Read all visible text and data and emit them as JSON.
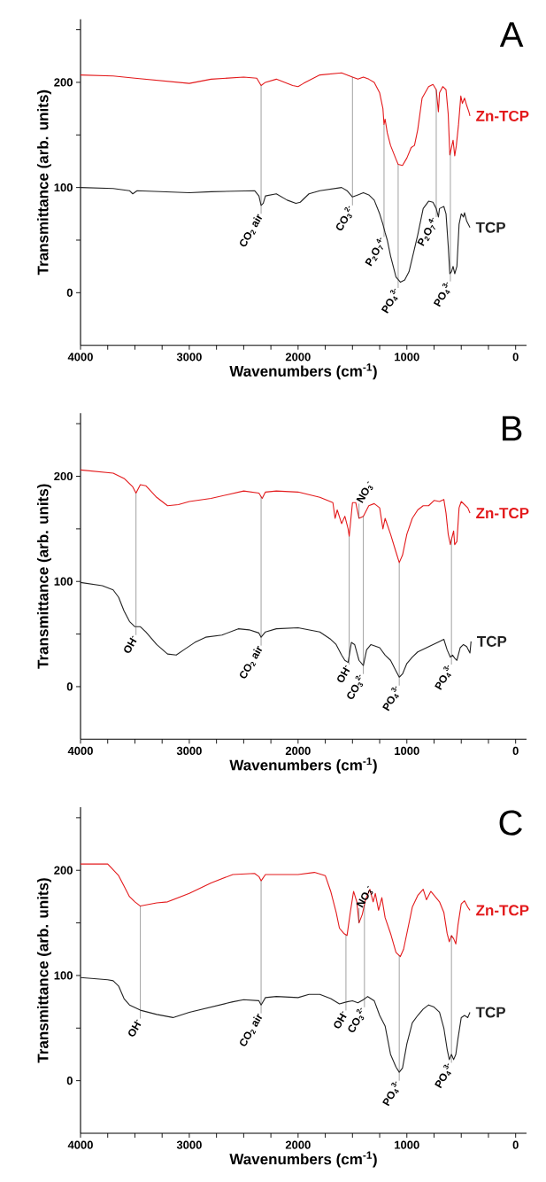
{
  "chart_data": [
    {
      "type": "line",
      "title": "A",
      "xlabel": "Wavenumbers (cm$^{-1}$)",
      "ylabel": "Transmittance (arb. units)",
      "xlim": [
        4000,
        -100
      ],
      "ylim": [
        -50,
        260
      ],
      "xticks": [
        0,
        {
          "value": 250,
          "label": null
        },
        {
          "value": 500,
          "label": null
        },
        {
          "value": 750,
          "label": null
        },
        1000,
        {
          "value": 1250,
          "label": null
        },
        {
          "value": 1500,
          "label": null
        },
        {
          "value": 1750,
          "label": null
        },
        2000,
        {
          "value": 2250,
          "label": null
        },
        {
          "value": 2500,
          "label": null
        },
        {
          "value": 2750,
          "label": null
        },
        3000,
        {
          "value": 3250,
          "label": null
        },
        {
          "value": 3500,
          "label": null
        },
        {
          "value": 3750,
          "label": null
        },
        4000
      ],
      "yticks": [
        0,
        {
          "value": 50,
          "label": null
        },
        100,
        {
          "value": 150,
          "label": null
        },
        200,
        {
          "value": 250,
          "label": null
        }
      ],
      "series": [
        {
          "name": "Zn-TCP",
          "color": "#e31a1c",
          "x": [
            4000,
            3700,
            3500,
            3000,
            2800,
            2500,
            2380,
            2340,
            2300,
            2200,
            2050,
            2000,
            1950,
            1800,
            1600,
            1500,
            1450,
            1400,
            1350,
            1300,
            1250,
            1220,
            1210,
            1200,
            1180,
            1150,
            1100,
            1080,
            1040,
            1000,
            960,
            930,
            900,
            860,
            800,
            760,
            730,
            710,
            700,
            670,
            640,
            620,
            605,
            590,
            575,
            560,
            545,
            525,
            504,
            490,
            470,
            450,
            430,
            420
          ],
          "values": [
            207,
            206,
            204,
            199,
            203,
            205,
            204,
            197,
            200,
            203,
            197,
            196,
            199,
            207,
            209,
            205,
            203,
            205,
            203,
            200,
            190,
            175,
            160,
            165,
            152,
            140,
            127,
            122,
            121,
            128,
            138,
            140,
            155,
            185,
            196,
            198,
            193,
            172,
            190,
            196,
            193,
            170,
            131,
            138,
            145,
            130,
            140,
            160,
            187,
            180,
            185,
            178,
            172,
            168
          ]
        },
        {
          "name": "TCP",
          "color": "#222222",
          "x": [
            4000,
            3700,
            3550,
            3520,
            3480,
            3000,
            2800,
            2400,
            2360,
            2340,
            2320,
            2300,
            2200,
            2100,
            2020,
            1980,
            1900,
            1800,
            1600,
            1550,
            1500,
            1450,
            1400,
            1350,
            1300,
            1250,
            1220,
            1200,
            1180,
            1150,
            1100,
            1060,
            1020,
            980,
            950,
            900,
            850,
            800,
            760,
            730,
            710,
            700,
            660,
            640,
            620,
            605,
            590,
            575,
            560,
            540,
            520,
            500,
            480,
            470,
            450,
            420
          ],
          "values": [
            100,
            99,
            97,
            94,
            97,
            95,
            96,
            97,
            92,
            83,
            85,
            92,
            94,
            88,
            85,
            86,
            94,
            97,
            100,
            97,
            91,
            93,
            95,
            93,
            88,
            75,
            65,
            57,
            50,
            35,
            15,
            10,
            12,
            20,
            33,
            55,
            80,
            87,
            86,
            80,
            72,
            80,
            82,
            75,
            45,
            18,
            20,
            25,
            18,
            25,
            65,
            75,
            72,
            76,
            68,
            62
          ]
        }
      ],
      "annotations": [
        {
          "text": "CO$_{2}$ air",
          "x": 2340,
          "y": 83
        },
        {
          "text": "CO$_{3}$$^{2-}$",
          "x": 1500,
          "y": 91
        },
        {
          "text": "P$_{2}$O$_{7}$$^{4-}$",
          "x": 1210,
          "y": 61
        },
        {
          "text": "PO$_{4}$$^{3-}$",
          "x": 1080,
          "y": 12.5
        },
        {
          "text": "P$_{2}$O$_{7}$$^{4-}$",
          "x": 730,
          "y": 80
        },
        {
          "text": "PO$_{4}$$^{3-}$",
          "x": 600,
          "y": 18.7
        }
      ]
    },
    {
      "type": "line",
      "title": "B",
      "xlabel": "Wavenumbers (cm$^{-1}$)",
      "ylabel": "Transmittance (arb. units)",
      "xlim": [
        4000,
        -100
      ],
      "ylim": [
        -50,
        260
      ],
      "xticks": [
        0,
        {
          "value": 250,
          "label": null
        },
        {
          "value": 500,
          "label": null
        },
        {
          "value": 750,
          "label": null
        },
        1000,
        {
          "value": 1250,
          "label": null
        },
        {
          "value": 1500,
          "label": null
        },
        {
          "value": 1750,
          "label": null
        },
        2000,
        {
          "value": 2250,
          "label": null
        },
        {
          "value": 2500,
          "label": null
        },
        {
          "value": 2750,
          "label": null
        },
        3000,
        {
          "value": 3250,
          "label": null
        },
        {
          "value": 3500,
          "label": null
        },
        {
          "value": 3750,
          "label": null
        },
        4000
      ],
      "yticks": [
        0,
        {
          "value": 50,
          "label": null
        },
        100,
        {
          "value": 150,
          "label": null
        },
        200,
        {
          "value": 250,
          "label": null
        }
      ],
      "series": [
        {
          "name": "Zn-TCP",
          "color": "#e31a1c",
          "x": [
            4000,
            3700,
            3600,
            3520,
            3490,
            3450,
            3400,
            3300,
            3200,
            3100,
            3000,
            2800,
            2500,
            2360,
            2330,
            2300,
            2200,
            2000,
            1800,
            1680,
            1660,
            1640,
            1600,
            1570,
            1540,
            1530,
            1500,
            1470,
            1440,
            1400,
            1350,
            1300,
            1250,
            1220,
            1200,
            1150,
            1100,
            1070,
            1040,
            1000,
            950,
            900,
            850,
            800,
            750,
            700,
            660,
            640,
            620,
            600,
            590,
            570,
            560,
            540,
            520,
            500,
            470,
            440,
            420
          ],
          "values": [
            206,
            203,
            198,
            190,
            184,
            192,
            191,
            180,
            172,
            173,
            176,
            179,
            186,
            184,
            179,
            185,
            186,
            185,
            180,
            175,
            160,
            168,
            155,
            162,
            150,
            143,
            175,
            175,
            160,
            162,
            172,
            174,
            170,
            150,
            160,
            145,
            128,
            118,
            125,
            145,
            160,
            168,
            172,
            172,
            177,
            176,
            178,
            165,
            145,
            135,
            140,
            148,
            135,
            138,
            170,
            176,
            173,
            170,
            165
          ]
        },
        {
          "name": "TCP",
          "color": "#222222",
          "x": [
            4000,
            3800,
            3700,
            3650,
            3600,
            3550,
            3500,
            3450,
            3400,
            3300,
            3200,
            3120,
            3050,
            2950,
            2850,
            2700,
            2550,
            2450,
            2360,
            2340,
            2300,
            2200,
            2000,
            1800,
            1700,
            1650,
            1600,
            1570,
            1540,
            1510,
            1480,
            1440,
            1400,
            1370,
            1330,
            1250,
            1200,
            1150,
            1100,
            1070,
            1040,
            1000,
            950,
            900,
            800,
            700,
            660,
            630,
            600,
            580,
            560,
            540,
            510,
            480,
            450,
            420,
            410
          ],
          "values": [
            99,
            96,
            92,
            85,
            72,
            62,
            57,
            57,
            52,
            40,
            31,
            30,
            35,
            42,
            47,
            49,
            55,
            54,
            51,
            47,
            52,
            55,
            56,
            52,
            45,
            40,
            30,
            25,
            23,
            42,
            40,
            25,
            20,
            35,
            40,
            37,
            30,
            25,
            15,
            9,
            12,
            22,
            28,
            33,
            38,
            43,
            45,
            35,
            28,
            30,
            27,
            25,
            37,
            40,
            38,
            32,
            43
          ]
        }
      ],
      "annotations": [
        {
          "text": "OH$^{-}$",
          "x": 3490,
          "y": 57
        },
        {
          "text": "CO$_{2}$ air",
          "x": 2340,
          "y": 47
        },
        {
          "text": "NO$_{3}$$^{-}$",
          "x": 1440,
          "y": 160
        },
        {
          "text": "OH$^{-}$",
          "x": 1530,
          "y": 29
        },
        {
          "text": "CO$_{3}$$^{2-}$",
          "x": 1400,
          "y": 20
        },
        {
          "text": "PO$_{4}$$^{3-}$",
          "x": 1070,
          "y": 9
        },
        {
          "text": "PO$_{4}$$^{3-}$",
          "x": 590,
          "y": 29
        }
      ]
    },
    {
      "type": "line",
      "title": "C",
      "xlabel": "Wavenumbers (cm$^{-1}$)",
      "ylabel": "Transmittance (arb. units)",
      "xlim": [
        4000,
        -100
      ],
      "ylim": [
        -50,
        260
      ],
      "xticks": [
        0,
        {
          "value": 250,
          "label": null
        },
        {
          "value": 500,
          "label": null
        },
        {
          "value": 750,
          "label": null
        },
        1000,
        {
          "value": 1250,
          "label": null
        },
        {
          "value": 1500,
          "label": null
        },
        {
          "value": 1750,
          "label": null
        },
        2000,
        {
          "value": 2250,
          "label": null
        },
        {
          "value": 2500,
          "label": null
        },
        {
          "value": 2750,
          "label": null
        },
        3000,
        {
          "value": 3250,
          "label": null
        },
        {
          "value": 3500,
          "label": null
        },
        {
          "value": 3750,
          "label": null
        },
        4000
      ],
      "yticks": [
        0,
        {
          "value": 50,
          "label": null
        },
        100,
        {
          "value": 150,
          "label": null
        },
        200,
        {
          "value": 250,
          "label": null
        }
      ],
      "series": [
        {
          "name": "Zn-TCP",
          "color": "#e31a1c",
          "x": [
            4000,
            3750,
            3650,
            3600,
            3550,
            3500,
            3450,
            3300,
            3200,
            3000,
            2800,
            2600,
            2400,
            2360,
            2340,
            2300,
            2000,
            1850,
            1750,
            1700,
            1650,
            1620,
            1580,
            1550,
            1520,
            1490,
            1460,
            1440,
            1410,
            1380,
            1340,
            1310,
            1290,
            1260,
            1230,
            1200,
            1150,
            1100,
            1060,
            1030,
            990,
            950,
            900,
            850,
            820,
            780,
            740,
            700,
            660,
            630,
            610,
            590,
            570,
            550,
            530,
            500,
            470,
            440,
            420
          ],
          "values": [
            206,
            206,
            195,
            185,
            175,
            170,
            166,
            169,
            170,
            178,
            188,
            196,
            197,
            194,
            190,
            196,
            196,
            198,
            195,
            180,
            160,
            145,
            140,
            138,
            160,
            180,
            170,
            150,
            158,
            172,
            182,
            170,
            178,
            162,
            174,
            155,
            140,
            122,
            118,
            125,
            145,
            165,
            176,
            182,
            172,
            180,
            175,
            170,
            160,
            140,
            132,
            138,
            135,
            130,
            148,
            168,
            171,
            165,
            162
          ]
        },
        {
          "name": "TCP",
          "color": "#222222",
          "x": [
            4000,
            3750,
            3700,
            3650,
            3600,
            3550,
            3450,
            3300,
            3150,
            3000,
            2800,
            2600,
            2500,
            2360,
            2340,
            2300,
            2200,
            2000,
            1900,
            1800,
            1700,
            1620,
            1550,
            1500,
            1450,
            1400,
            1360,
            1300,
            1250,
            1200,
            1150,
            1100,
            1070,
            1040,
            1000,
            950,
            900,
            850,
            800,
            750,
            700,
            660,
            630,
            610,
            590,
            570,
            550,
            530,
            500,
            470,
            440,
            420
          ],
          "values": [
            98,
            96,
            95,
            90,
            78,
            72,
            67,
            63,
            60,
            65,
            70,
            75,
            77,
            76,
            72,
            79,
            80,
            79,
            82,
            82,
            78,
            73,
            75,
            76,
            74,
            77,
            80,
            76,
            62,
            52,
            25,
            13,
            8,
            12,
            35,
            55,
            62,
            68,
            72,
            70,
            65,
            50,
            30,
            20,
            25,
            20,
            25,
            40,
            60,
            62,
            60,
            65
          ]
        }
      ],
      "annotations": [
        {
          "text": "OH$^{-}$",
          "x": 3450,
          "y": 67
        },
        {
          "text": "CO$_{2}$ air",
          "x": 2340,
          "y": 72
        },
        {
          "text": "NO$_{3}$$^{-}$",
          "x": 1440,
          "y": 150
        },
        {
          "text": "OH$^{-}$",
          "x": 1560,
          "y": 74.7
        },
        {
          "text": "CO$_{3}$$^{2-}$",
          "x": 1390,
          "y": 77.8
        },
        {
          "text": "PO$_{4}$$^{3-}$",
          "x": 1070,
          "y": 8
        },
        {
          "text": "PO$_{4}$$^{3-}$",
          "x": 590,
          "y": 25
        }
      ]
    }
  ]
}
